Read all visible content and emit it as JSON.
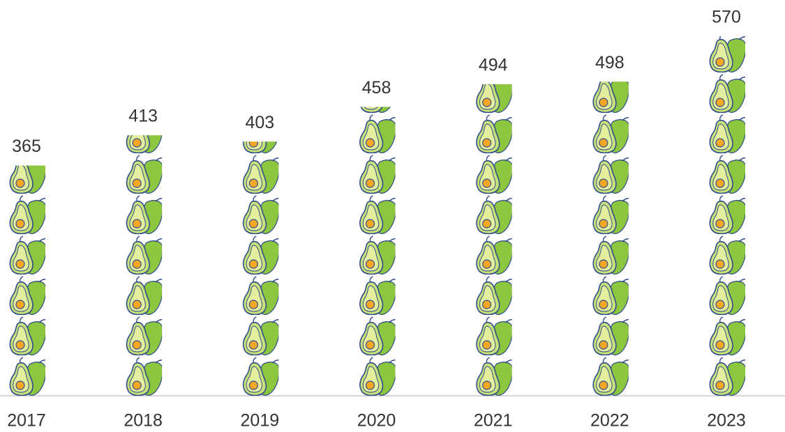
{
  "chart_data": {
    "type": "bar",
    "categories": [
      "2017",
      "2018",
      "2019",
      "2020",
      "2021",
      "2022",
      "2023"
    ],
    "values": [
      365,
      413,
      403,
      458,
      494,
      498,
      570
    ],
    "color": "#8dc63f"
  }
}
